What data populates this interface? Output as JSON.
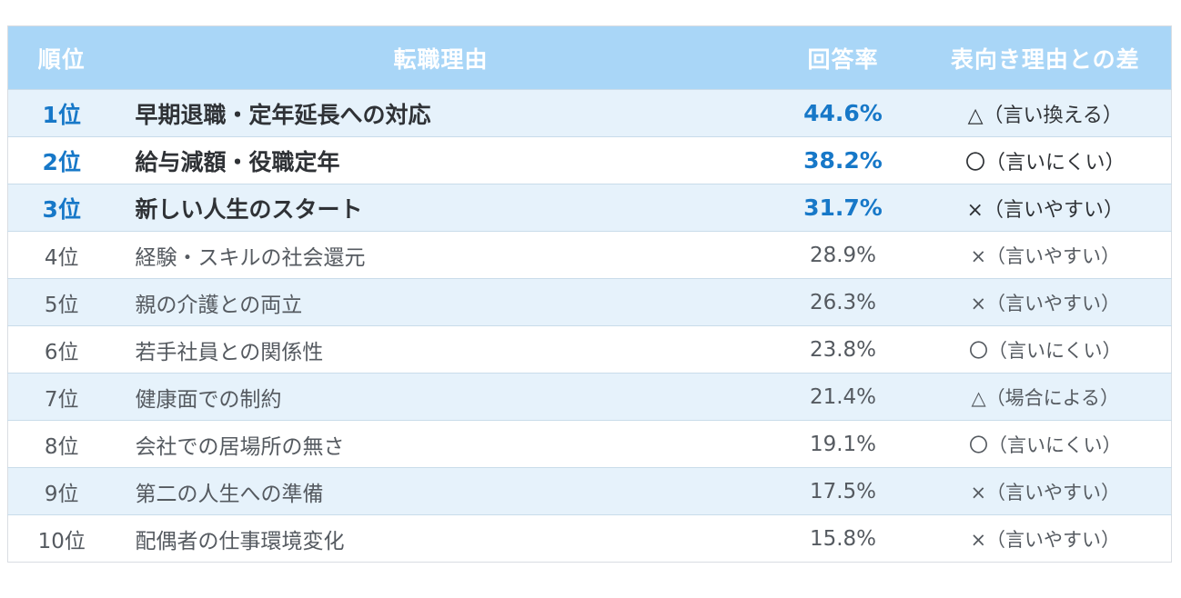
{
  "header": {
    "rank": "順位",
    "reason": "転職理由",
    "rate": "回答率",
    "diff": "表向き理由との差"
  },
  "rows": [
    {
      "rank": "1位",
      "reason": "早期退職・定年延長への対応",
      "rate": "44.6%",
      "diff": "△（言い換える）"
    },
    {
      "rank": "2位",
      "reason": "給与減額・役職定年",
      "rate": "38.2%",
      "diff": "〇（言いにくい）"
    },
    {
      "rank": "3位",
      "reason": "新しい人生のスタート",
      "rate": "31.7%",
      "diff": "×（言いやすい）"
    },
    {
      "rank": "4位",
      "reason": "経験・スキルの社会還元",
      "rate": "28.9%",
      "diff": "×（言いやすい）"
    },
    {
      "rank": "5位",
      "reason": "親の介護との両立",
      "rate": "26.3%",
      "diff": "×（言いやすい）"
    },
    {
      "rank": "6位",
      "reason": "若手社員との関係性",
      "rate": "23.8%",
      "diff": "〇（言いにくい）"
    },
    {
      "rank": "7位",
      "reason": "健康面での制約",
      "rate": "21.4%",
      "diff": "△（場合による）"
    },
    {
      "rank": "8位",
      "reason": "会社での居場所の無さ",
      "rate": "19.1%",
      "diff": "〇（言いにくい）"
    },
    {
      "rank": "9位",
      "reason": "第二の人生への準備",
      "rate": "17.5%",
      "diff": "×（言いやすい）"
    },
    {
      "rank": "10位",
      "reason": "配偶者の仕事環境変化",
      "rate": "15.8%",
      "diff": "×（言いやすい）"
    }
  ],
  "colors": {
    "header_bg": "#a9d6f7",
    "accent": "#1778c8",
    "alt_row_bg": "#e6f2fb"
  }
}
